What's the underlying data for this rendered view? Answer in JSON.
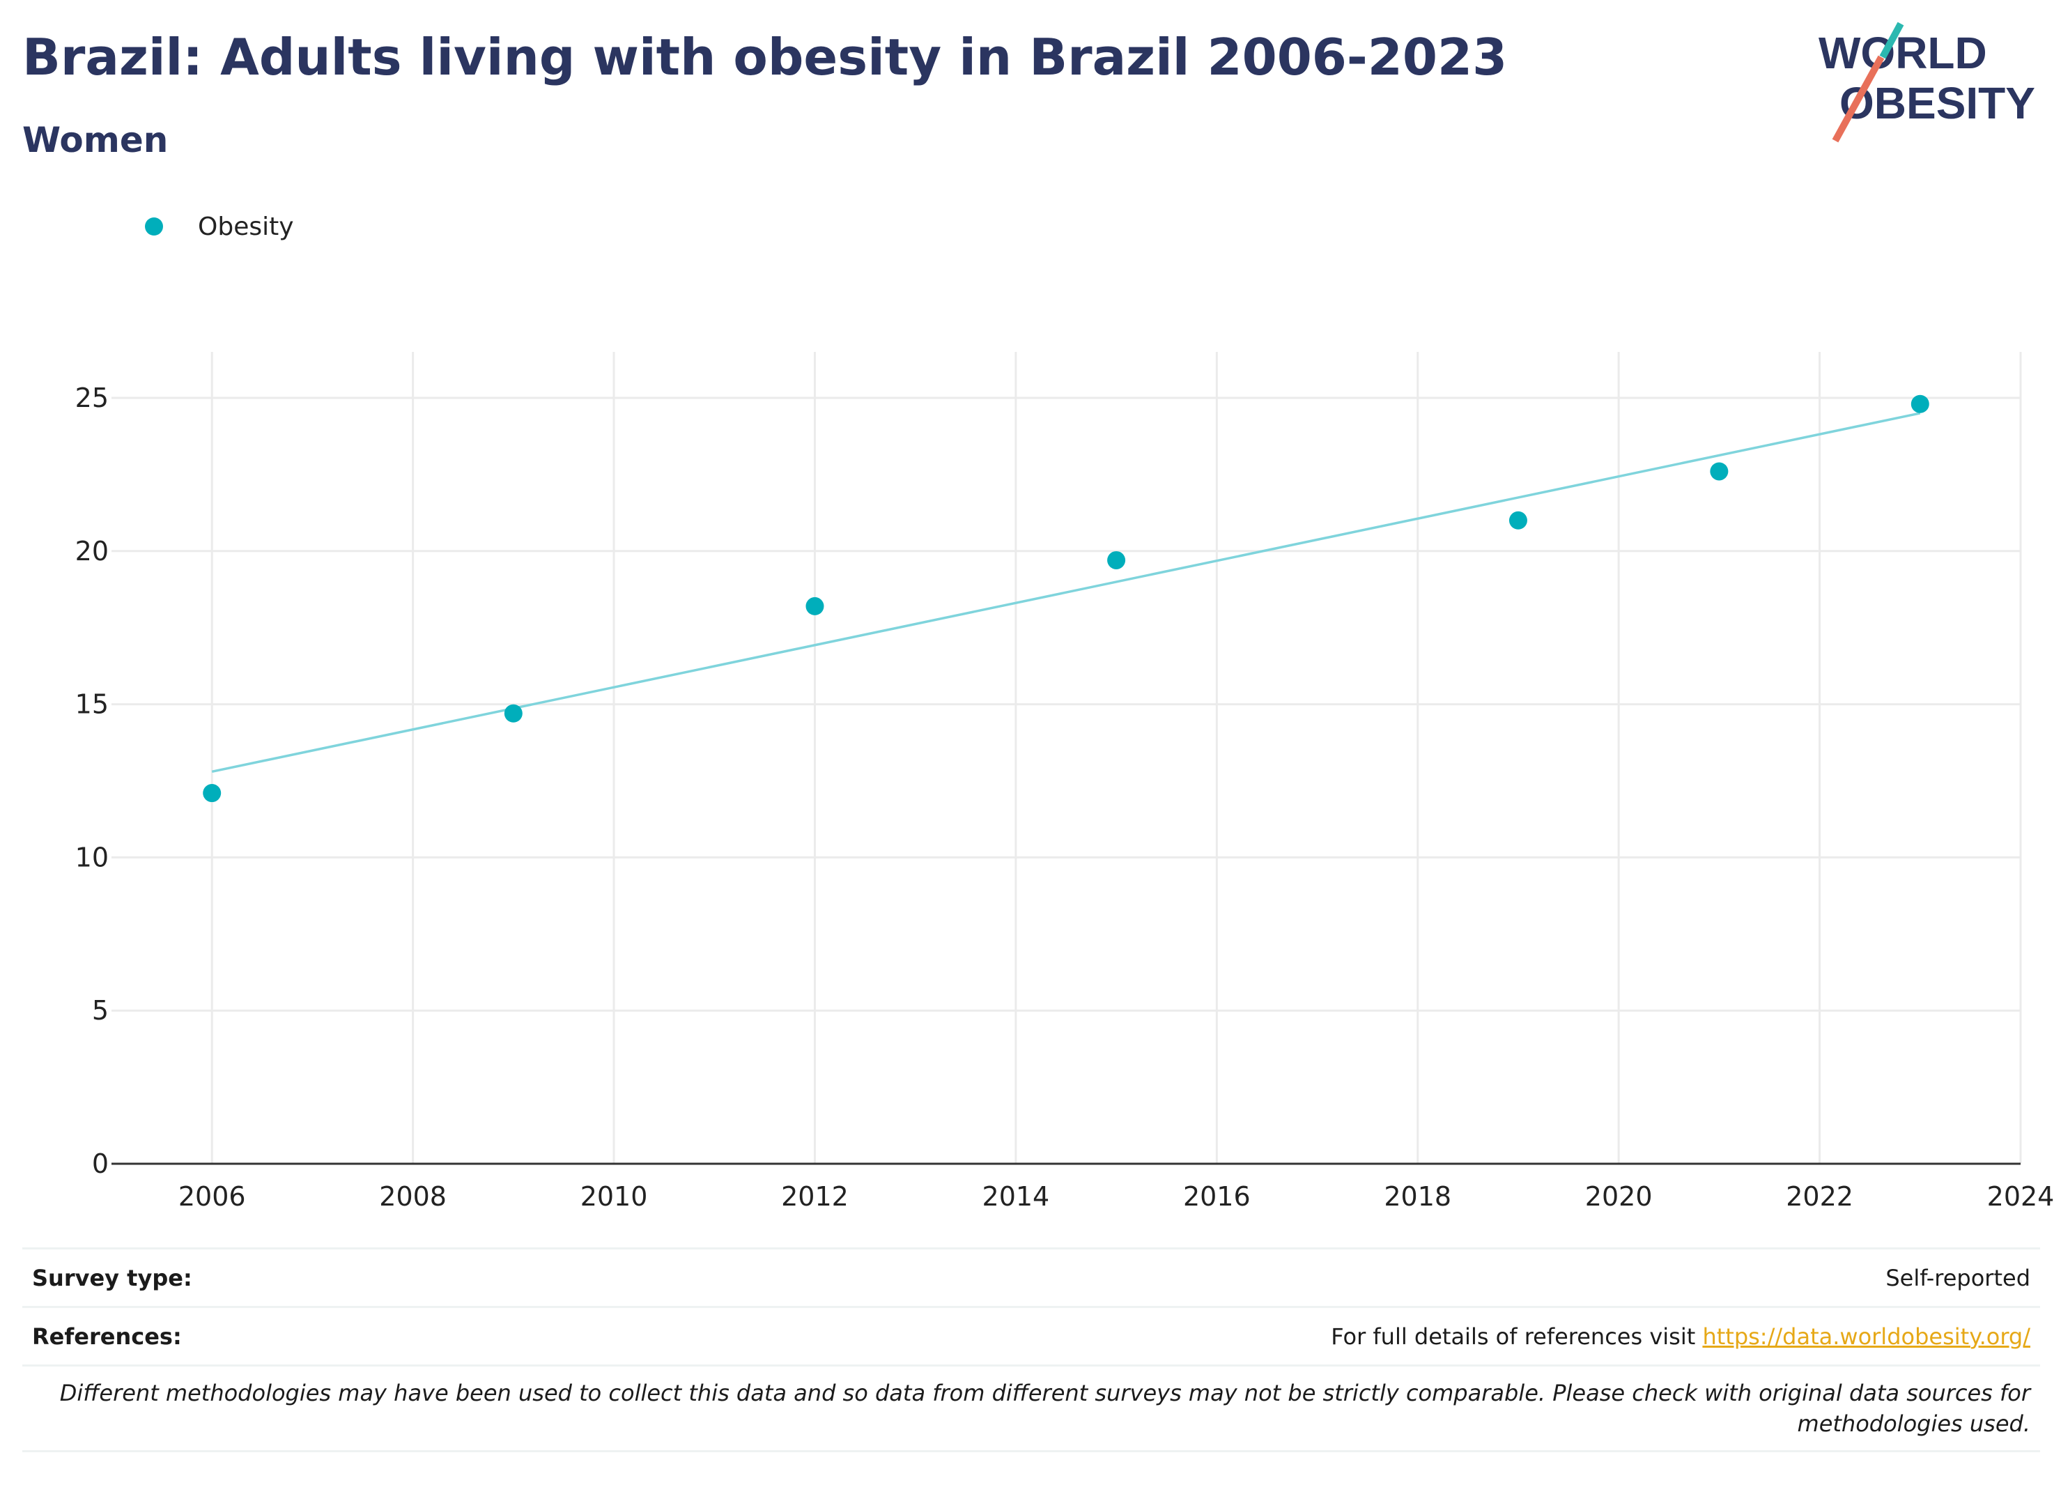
{
  "header": {
    "title": "Brazil: Adults living with obesity in Brazil 2006-2023",
    "subtitle": "Women"
  },
  "logo": {
    "line1": "WORLD",
    "line2": "OBESITY",
    "accent_teal": "#2bb8b0",
    "accent_red": "#e8705a",
    "text_color": "#2b3560"
  },
  "legend": {
    "items": [
      {
        "label": "Obesity",
        "color": "#00aebb"
      }
    ]
  },
  "chart_data": {
    "type": "scatter",
    "series": [
      {
        "name": "Obesity",
        "x": [
          2006,
          2009,
          2012,
          2015,
          2019,
          2021,
          2023
        ],
        "y": [
          12.1,
          14.7,
          18.2,
          19.7,
          21.0,
          22.6,
          24.8
        ],
        "color": "#00aebb"
      }
    ],
    "trendline": {
      "x": [
        2006,
        2023
      ],
      "y": [
        12.8,
        24.5
      ],
      "color": "#7fd4dc"
    },
    "xlim": [
      2005.0,
      2024.0
    ],
    "ylim": [
      0,
      26.5
    ],
    "xticks": [
      2006,
      2008,
      2010,
      2012,
      2014,
      2016,
      2018,
      2020,
      2022,
      2024
    ],
    "yticks": [
      0,
      5,
      10,
      15,
      20,
      25
    ],
    "grid": true,
    "legend_position": "top-left"
  },
  "footer": {
    "survey_label": "Survey type:",
    "survey_value": "Self-reported",
    "references_label": "References:",
    "references_text": "For full details of references visit ",
    "references_link": "https://data.worldobesity.org/",
    "note": "Different methodologies may have been used to collect this data and so data from different surveys may not be strictly comparable. Please check with original data sources for methodologies used."
  }
}
